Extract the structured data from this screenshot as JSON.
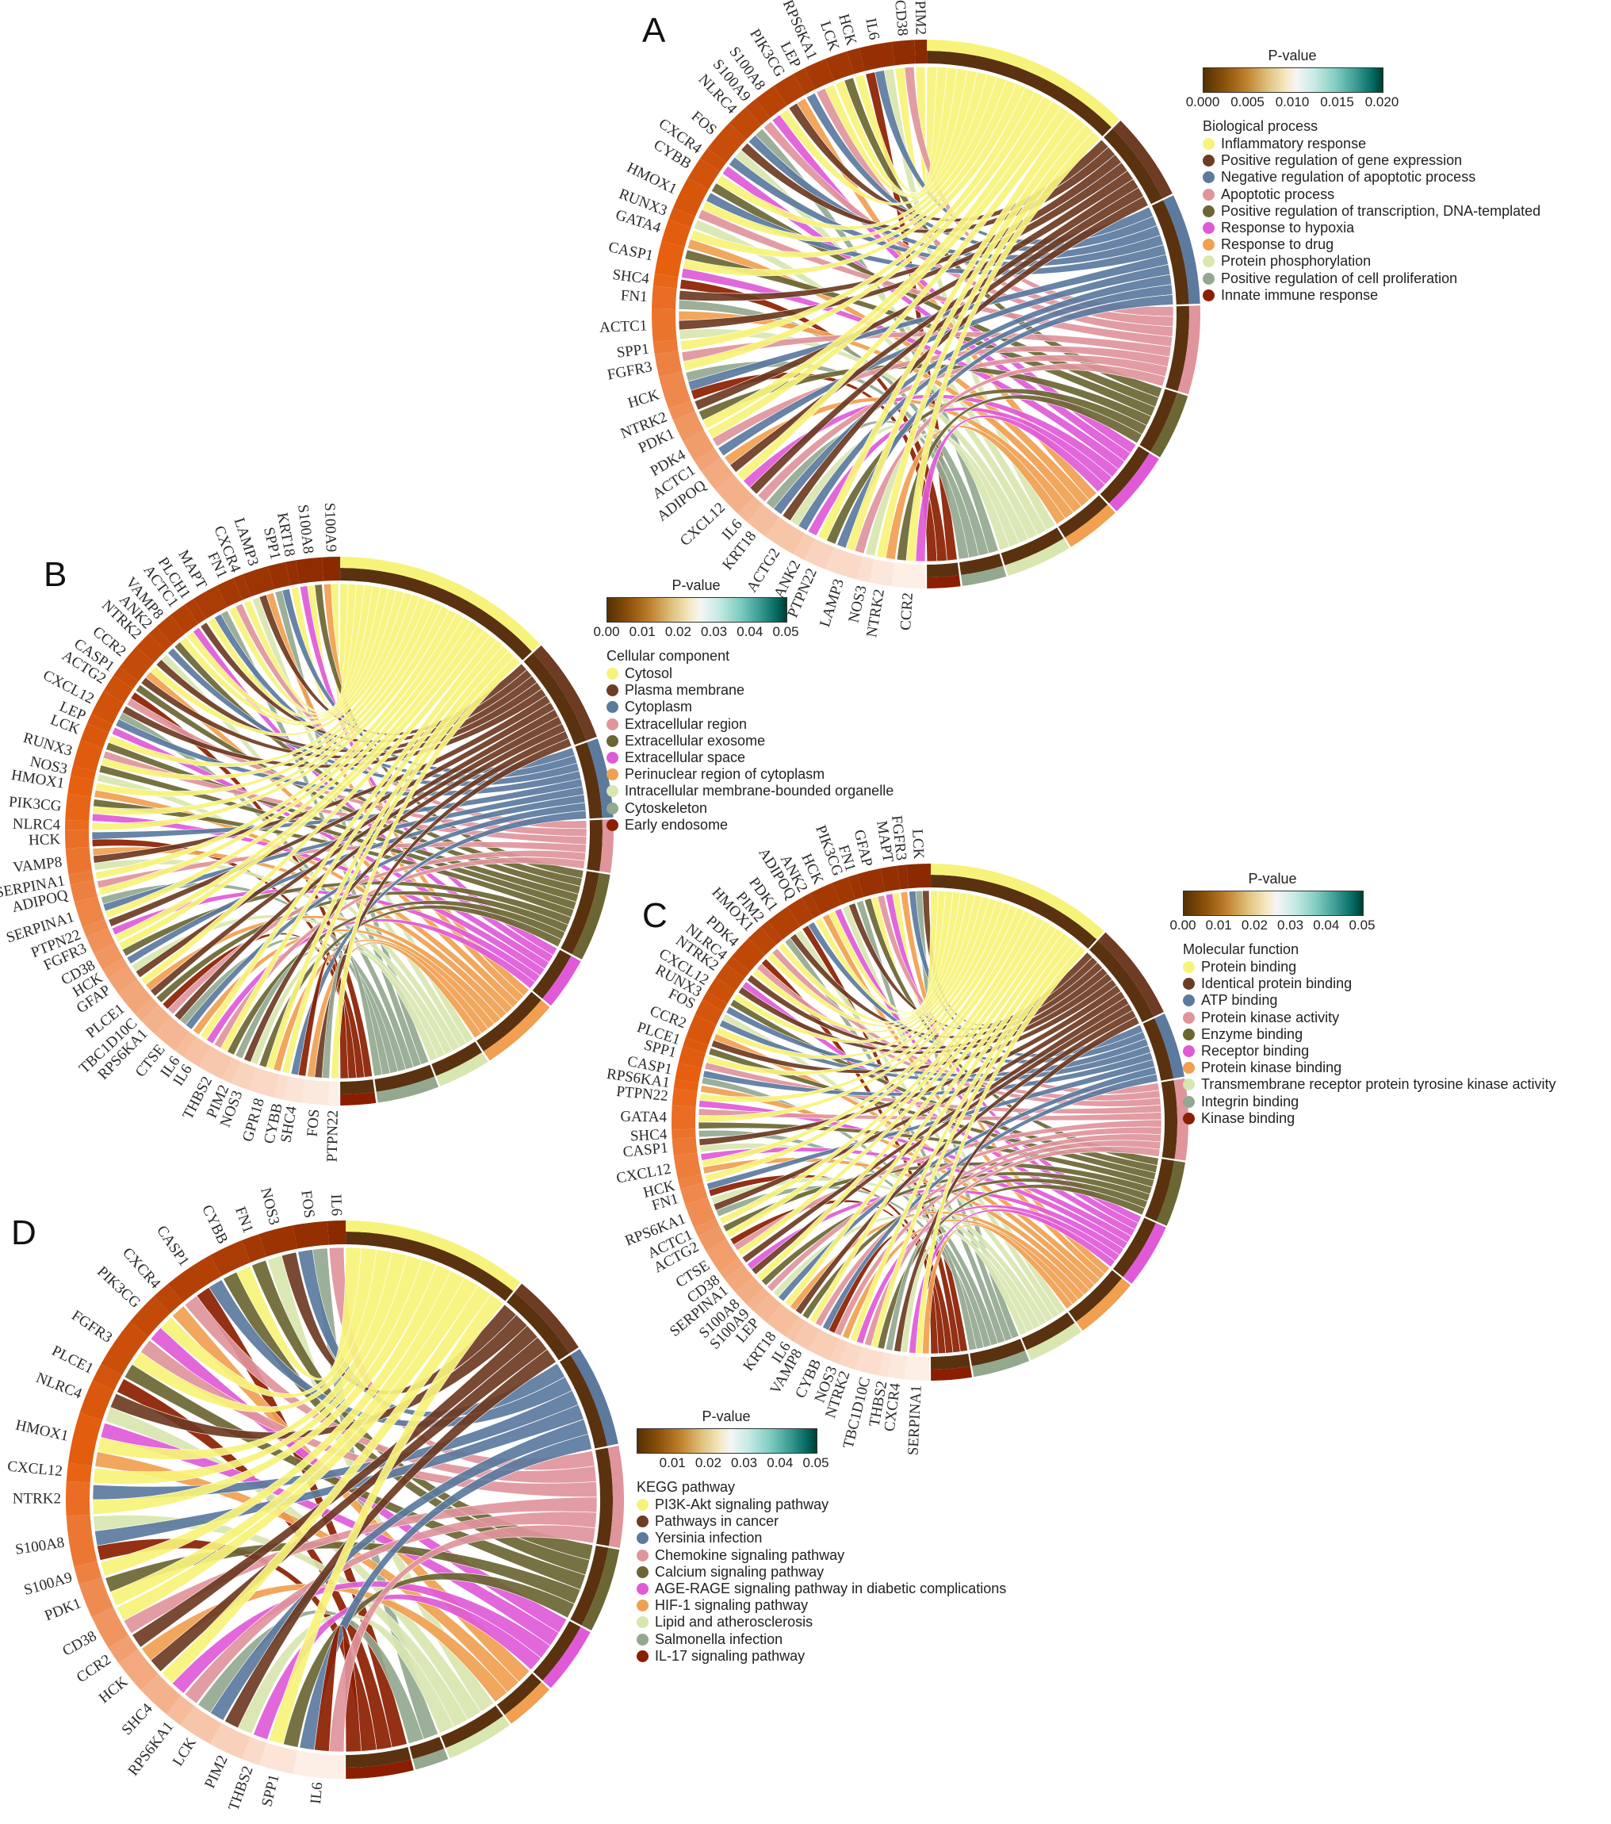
{
  "chart_data": [
    {
      "type": "chord",
      "panel": "A",
      "genes": [
        "PIM2",
        "CD38",
        "IL6",
        "HCK",
        "LCK",
        "RPS6KA1",
        "LEP",
        "PIK3CG",
        "S100A8",
        "S100A9",
        "NLRC4",
        "FOS",
        "CXCR4",
        "CYBB",
        "HMOX1",
        "RUNX3",
        "GATA4",
        "CASP1",
        "SHC4",
        "FN1",
        "ACTC1",
        "SPP1",
        "FGFR3",
        "HCK",
        "NTRK2",
        "PDK1",
        "PDK4",
        "ACTC1",
        "ADIPOQ",
        "CXCL12",
        "IL6",
        "KRT18",
        "ACTG2",
        "ANK2",
        "PTPN22",
        "LAMP3",
        "NOS3",
        "NTRK2",
        "CCR2"
      ],
      "legend_title": "Biological process",
      "terms": [
        "Inflammatory response",
        "Positive regulation of gene expression",
        "Negative regulation of apoptotic process",
        "Apoptotic process",
        "Positive regulation of transcription, DNA-templated",
        "Response to hypoxia",
        "Response to drug",
        "Protein phosphorylation",
        "Positive regulation of cell proliferation",
        "Innate immune response"
      ],
      "colorbar": {
        "title": "P-value",
        "range": [
          0,
          0.02
        ],
        "ticks": [
          "0.000",
          "0.005",
          "0.010",
          "0.015",
          "0.020"
        ]
      }
    },
    {
      "type": "chord",
      "panel": "B",
      "genes": [
        "S100A9",
        "S100A8",
        "KRT18",
        "SPP1",
        "LAMP3",
        "CXCR4",
        "FN1",
        "MAPT",
        "PLCH1",
        "ACTC1",
        "VAMP8",
        "ANK2",
        "NTRK2",
        "CCR2",
        "CASP1",
        "ACTG2",
        "CXCL12",
        "LEP",
        "LCK",
        "RUNX3",
        "NOS3",
        "HMOX1",
        "PIK3CG",
        "NLRC4",
        "HCK",
        "VAMP8",
        "SERPINA1",
        "ADIPOQ",
        "SERPINA1",
        "PTPN22",
        "FGFR3",
        "CD38",
        "HCK",
        "GFAP",
        "PLCE1",
        "TBC1D10C",
        "RPS6KA1",
        "CTSE",
        "IL6",
        "IL6",
        "THBS2",
        "PIM2",
        "NOS3",
        "GPR18",
        "CYBB",
        "SHC4",
        "FOS",
        "PTPN22"
      ],
      "legend_title": "Cellular component",
      "terms": [
        "Cytosol",
        "Plasma membrane",
        "Cytoplasm",
        "Extracellular region",
        "Extracellular exosome",
        "Extracellular space",
        "Perinuclear region of cytoplasm",
        "Intracellular membrane-bounded organelle",
        "Cytoskeleton",
        "Early endosome"
      ],
      "colorbar": {
        "title": "P-value",
        "range": [
          0,
          0.05
        ],
        "ticks": [
          "0.00",
          "0.01",
          "0.02",
          "0.03",
          "0.04",
          "0.05"
        ]
      }
    },
    {
      "type": "chord",
      "panel": "C",
      "genes": [
        "LCK",
        "FGFR3",
        "MAPT",
        "GFAP",
        "FN1",
        "PIK3CG",
        "HCK",
        "ANK2",
        "ADIPOQ",
        "PDK1",
        "PIM2",
        "HMOX1",
        "PDK4",
        "NLRC4",
        "NTRK2",
        "CXCL12",
        "RUNX3",
        "FOS",
        "CCR2",
        "PLCE1",
        "SPP1",
        "CASP1",
        "RPS6KA1",
        "PTPN22",
        "GATA4",
        "SHC4",
        "CASP1",
        "CXCL12",
        "HCK",
        "FN1",
        "RPS6KA1",
        "ACTC1",
        "ACTG2",
        "CTSE",
        "CD38",
        "SERPINA1",
        "S100A8",
        "S100A9",
        "LEP",
        "KRT18",
        "IL6",
        "VAMP8",
        "CYBB",
        "NOS3",
        "NTRK2",
        "TBC1D10C",
        "THBS2",
        "CXCR4",
        "SERPINA1"
      ],
      "legend_title": "Molecular function",
      "terms": [
        "Protein binding",
        "Identical protein binding",
        "ATP binding",
        "Protein kinase activity",
        "Enzyme binding",
        "Receptor binding",
        "Protein kinase binding",
        "Transmembrane receptor protein tyrosine kinase activity",
        "Integrin binding",
        "Kinase binding"
      ],
      "colorbar": {
        "title": "P-value",
        "range": [
          0,
          0.05
        ],
        "ticks": [
          "0.00",
          "0.01",
          "0.02",
          "0.03",
          "0.04",
          "0.05"
        ]
      }
    },
    {
      "type": "chord",
      "panel": "D",
      "genes": [
        "IL6",
        "FOS",
        "NOS3",
        "FN1",
        "CYBB",
        "CASP1",
        "CXCR4",
        "PIK3CG",
        "FGFR3",
        "PLCE1",
        "NLRC4",
        "HMOX1",
        "CXCL12",
        "NTRK2",
        "S100A8",
        "S100A9",
        "PDK1",
        "CD38",
        "CCR2",
        "HCK",
        "SHC4",
        "RPS6KA1",
        "LCK",
        "PIM2",
        "THBS2",
        "SPP1",
        "IL6"
      ],
      "legend_title": "KEGG pathway",
      "terms": [
        "PI3K-Akt signaling pathway",
        "Pathways in cancer",
        "Yersinia infection",
        "Chemokine signaling pathway",
        "Calcium signaling pathway",
        "AGE-RAGE signaling pathway in diabetic complications",
        "HIF-1 signaling pathway",
        "Lipid and atherosclerosis",
        "Salmonella infection",
        "IL-17 signaling pathway"
      ],
      "colorbar": {
        "title": "P-value",
        "range": [
          0,
          0.05
        ],
        "ticks": [
          "0.01",
          "0.02",
          "0.03",
          "0.04",
          "0.05"
        ]
      }
    }
  ],
  "term_colors": [
    "#f7f37a",
    "#6e3b23",
    "#5b7a9e",
    "#e0949c",
    "#6b6633",
    "#e05ad8",
    "#f0a050",
    "#d8e6b0",
    "#94a890",
    "#8b1e00"
  ],
  "gene_ring_colors": [
    "#8b2a00",
    "#e8600f",
    "#fdeee6"
  ],
  "pvalue_band_color": "#5a3210",
  "colorbar_colors": [
    "#543005",
    "#f5f5f5",
    "#003c30"
  ]
}
